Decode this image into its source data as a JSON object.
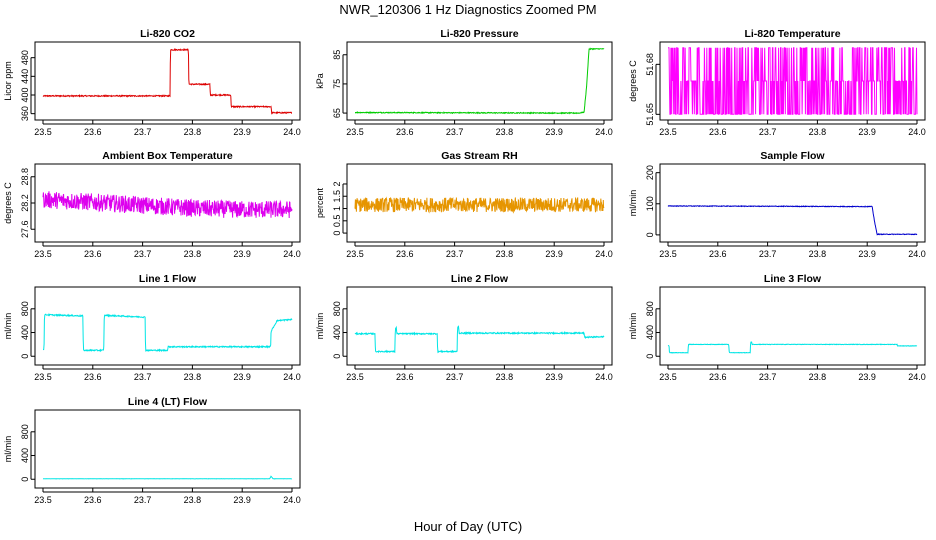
{
  "figure": {
    "title": "NWR_120306  1 Hz Diagnostics Zoomed PM",
    "xlabel": "Hour of Day (UTC)"
  },
  "chart_data": [
    {
      "id": "co2",
      "type": "line",
      "title": "Li-820 CO2",
      "ylabel": "Licor ppm",
      "color": "#dd0000",
      "xlim": [
        23.5,
        24.0
      ],
      "ylim": [
        355,
        505
      ],
      "yticks": [
        360,
        400,
        440,
        480
      ],
      "xticks": [
        "23.5",
        "23.6",
        "23.7",
        "23.8",
        "23.9",
        "24.0"
      ],
      "x": [
        23.5,
        23.755,
        23.756,
        23.792,
        23.793,
        23.835,
        23.836,
        23.877,
        23.878,
        23.958,
        23.959,
        23.99,
        24.0
      ],
      "y": [
        398,
        398,
        497,
        497,
        423,
        423,
        400,
        400,
        375,
        375,
        362,
        362,
        362
      ],
      "noise": 1.2
    },
    {
      "id": "pressure",
      "type": "line",
      "title": "Li-820 Pressure",
      "ylabel": "kPa",
      "color": "#00cc00",
      "xlim": [
        23.5,
        24.0
      ],
      "ylim": [
        64,
        88
      ],
      "yticks": [
        65,
        75,
        85
      ],
      "xticks": [
        "23.5",
        "23.6",
        "23.7",
        "23.8",
        "23.9",
        "24.0"
      ],
      "x": [
        23.5,
        23.95,
        23.96,
        23.965,
        23.97,
        24.0
      ],
      "y": [
        65.2,
        65.0,
        65.3,
        74,
        87,
        87
      ],
      "noise": 0.15
    },
    {
      "id": "licor_temp",
      "type": "line",
      "title": "Li-820 Temperature",
      "ylabel": "degrees C",
      "color": "#ff00ff",
      "xlim": [
        23.5,
        24.0
      ],
      "ylim": [
        51.649,
        51.691
      ],
      "yticks": [
        51.65,
        51.68
      ],
      "xticks": [
        "23.5",
        "23.6",
        "23.7",
        "23.8",
        "23.9",
        "24.0"
      ],
      "levels": [
        51.65,
        51.67,
        51.69
      ]
    },
    {
      "id": "ambient_temp",
      "type": "line",
      "title": "Ambient Box Temperature",
      "ylabel": "degrees C",
      "color": "#dd00ee",
      "xlim": [
        23.5,
        24.0
      ],
      "ylim": [
        27.4,
        29.0
      ],
      "yticks": [
        27.6,
        28.2,
        28.8
      ],
      "xticks": [
        "23.5",
        "23.6",
        "23.7",
        "23.8",
        "23.9",
        "24.0"
      ],
      "x": [
        23.5,
        23.6,
        23.7,
        23.8,
        23.9,
        24.0
      ],
      "y": [
        28.28,
        28.22,
        28.15,
        28.08,
        28.05,
        28.05
      ],
      "noise": 0.2
    },
    {
      "id": "gas_rh",
      "type": "line",
      "title": "Gas Stream RH",
      "ylabel": "percent",
      "color": "#e69500",
      "xlim": [
        23.5,
        24.0
      ],
      "ylim": [
        -0.2,
        2.65
      ],
      "yticks": [
        0.0,
        0.5,
        1.0,
        1.5,
        2.0
      ],
      "xticks": [
        "23.5",
        "23.6",
        "23.7",
        "23.8",
        "23.9",
        "24.0"
      ],
      "x": [
        23.5,
        24.0
      ],
      "y": [
        1.15,
        1.15
      ],
      "noise": 0.3
    },
    {
      "id": "sample_flow",
      "type": "line",
      "title": "Sample Flow",
      "ylabel": "ml/min",
      "color": "#0000cc",
      "xlim": [
        23.5,
        24.0
      ],
      "ylim": [
        -10,
        215
      ],
      "yticks": [
        0,
        100,
        200
      ],
      "xticks": [
        "23.5",
        "23.6",
        "23.7",
        "23.8",
        "23.9",
        "24.0"
      ],
      "x": [
        23.5,
        23.91,
        23.915,
        23.92,
        24.0
      ],
      "y": [
        93,
        91,
        40,
        2,
        2
      ],
      "noise": 1.0
    },
    {
      "id": "line1",
      "type": "line",
      "title": "Line 1 Flow",
      "ylabel": "ml/min",
      "color": "#00e5e5",
      "xlim": [
        23.5,
        24.0
      ],
      "ylim": [
        -80,
        1100
      ],
      "yticks": [
        0,
        400,
        800
      ],
      "xticks": [
        "23.5",
        "23.6",
        "23.7",
        "23.8",
        "23.9",
        "24.0"
      ],
      "x": [
        23.5,
        23.502,
        23.503,
        23.58,
        23.581,
        23.622,
        23.623,
        23.705,
        23.706,
        23.75,
        23.751,
        23.957,
        23.958,
        23.97,
        24.0
      ],
      "y": [
        120,
        120,
        700,
        680,
        100,
        100,
        690,
        660,
        100,
        100,
        160,
        160,
        420,
        600,
        620
      ],
      "noise": 10
    },
    {
      "id": "line2",
      "type": "line",
      "title": "Line 2 Flow",
      "ylabel": "ml/min",
      "color": "#00e5e5",
      "xlim": [
        23.5,
        24.0
      ],
      "ylim": [
        -80,
        1100
      ],
      "yticks": [
        0,
        400,
        800
      ],
      "xticks": [
        "23.5",
        "23.6",
        "23.7",
        "23.8",
        "23.9",
        "24.0"
      ],
      "x": [
        23.5,
        23.54,
        23.541,
        23.58,
        23.581,
        23.583,
        23.584,
        23.665,
        23.666,
        23.705,
        23.706,
        23.708,
        23.709,
        23.96,
        23.961,
        24.0
      ],
      "y": [
        380,
        380,
        80,
        80,
        480,
        480,
        380,
        380,
        80,
        80,
        500,
        500,
        390,
        390,
        320,
        330
      ],
      "noise": 10
    },
    {
      "id": "line3",
      "type": "line",
      "title": "Line 3 Flow",
      "ylabel": "ml/min",
      "color": "#00e5e5",
      "xlim": [
        23.5,
        24.0
      ],
      "ylim": [
        -80,
        1100
      ],
      "yticks": [
        0,
        400,
        800
      ],
      "xticks": [
        "23.5",
        "23.6",
        "23.7",
        "23.8",
        "23.9",
        "24.0"
      ],
      "x": [
        23.5,
        23.502,
        23.503,
        23.54,
        23.541,
        23.622,
        23.623,
        23.665,
        23.666,
        23.668,
        23.669,
        23.96,
        23.961,
        24.0
      ],
      "y": [
        180,
        180,
        60,
        60,
        200,
        200,
        60,
        60,
        240,
        240,
        200,
        200,
        175,
        175
      ],
      "noise": 4
    },
    {
      "id": "line4",
      "type": "line",
      "title": "Line 4 (LT) Flow",
      "ylabel": "ml/min",
      "color": "#00e5e5",
      "xlim": [
        23.5,
        24.0
      ],
      "ylim": [
        -80,
        1100
      ],
      "yticks": [
        0,
        400,
        800
      ],
      "xticks": [
        "23.5",
        "23.6",
        "23.7",
        "23.8",
        "23.9",
        "24.0"
      ],
      "x": [
        23.5,
        23.955,
        23.958,
        23.962,
        24.0
      ],
      "y": [
        8,
        8,
        50,
        8,
        8
      ],
      "noise": 1.5
    }
  ]
}
